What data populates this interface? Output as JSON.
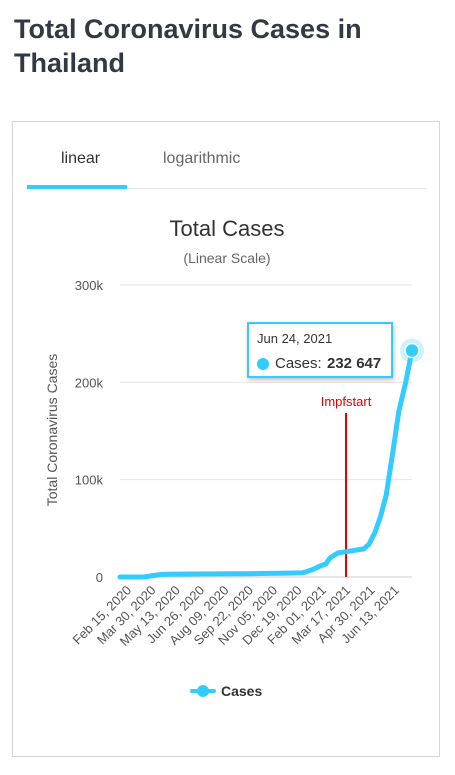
{
  "page": {
    "title": "Total Coronavirus Cases in Thailand"
  },
  "tabs": [
    {
      "label": "linear",
      "active": true
    },
    {
      "label": "logarithmic",
      "active": false
    }
  ],
  "tooltip": {
    "date": "Jun 24, 2021",
    "label": "Cases:",
    "value": "232 647"
  },
  "colors": {
    "series": "#33ccff",
    "annotation": "#dd0000",
    "grid": "#e6e6e6"
  },
  "chart_data": {
    "type": "line",
    "title": "Total Cases",
    "subtitle": "(Linear Scale)",
    "ylabel": "Total Coronavirus Cases",
    "xlabel": "",
    "ylim": [
      0,
      300000
    ],
    "yticks": [
      {
        "value": 0,
        "label": "0"
      },
      {
        "value": 100000,
        "label": "100k"
      },
      {
        "value": 200000,
        "label": "200k"
      },
      {
        "value": 300000,
        "label": "300k"
      }
    ],
    "xticks": [
      "Feb 15, 2020",
      "Mar 30, 2020",
      "May 13, 2020",
      "Jun 26, 2020",
      "Aug 09, 2020",
      "Sep 22, 2020",
      "Nov 05, 2020",
      "Dec 19, 2020",
      "Feb 01, 2021",
      "Mar 17, 2021",
      "Apr 30, 2021",
      "Jun 13, 2021"
    ],
    "xrange": [
      "2020-02-01",
      "2021-06-24"
    ],
    "grid": true,
    "legend": {
      "position": "bottom",
      "entries": [
        "Cases"
      ]
    },
    "annotations": [
      {
        "label": "Impfstart",
        "x": "2021-03-01"
      }
    ],
    "series": [
      {
        "name": "Cases",
        "points": [
          [
            "2020-02-01",
            19
          ],
          [
            "2020-02-15",
            34
          ],
          [
            "2020-03-01",
            42
          ],
          [
            "2020-03-15",
            114
          ],
          [
            "2020-03-30",
            1524
          ],
          [
            "2020-04-15",
            2643
          ],
          [
            "2020-05-01",
            2960
          ],
          [
            "2020-05-13",
            3017
          ],
          [
            "2020-06-01",
            3081
          ],
          [
            "2020-06-26",
            3162
          ],
          [
            "2020-07-15",
            3236
          ],
          [
            "2020-08-09",
            3330
          ],
          [
            "2020-09-01",
            3417
          ],
          [
            "2020-09-22",
            3519
          ],
          [
            "2020-10-15",
            3686
          ],
          [
            "2020-11-05",
            3810
          ],
          [
            "2020-12-01",
            4063
          ],
          [
            "2020-12-15",
            4280
          ],
          [
            "2020-12-19",
            4907
          ],
          [
            "2020-12-25",
            6141
          ],
          [
            "2021-01-01",
            7379
          ],
          [
            "2021-01-15",
            11262
          ],
          [
            "2021-01-25",
            13500
          ],
          [
            "2021-02-01",
            19618
          ],
          [
            "2021-02-15",
            24714
          ],
          [
            "2021-03-01",
            26031
          ],
          [
            "2021-03-17",
            27402
          ],
          [
            "2021-04-01",
            28889
          ],
          [
            "2021-04-10",
            33610
          ],
          [
            "2021-04-20",
            45185
          ],
          [
            "2021-04-30",
            61699
          ],
          [
            "2021-05-10",
            84000
          ],
          [
            "2021-05-20",
            122000
          ],
          [
            "2021-06-01",
            170000
          ],
          [
            "2021-06-13",
            200000
          ],
          [
            "2021-06-24",
            232647
          ]
        ]
      }
    ]
  }
}
